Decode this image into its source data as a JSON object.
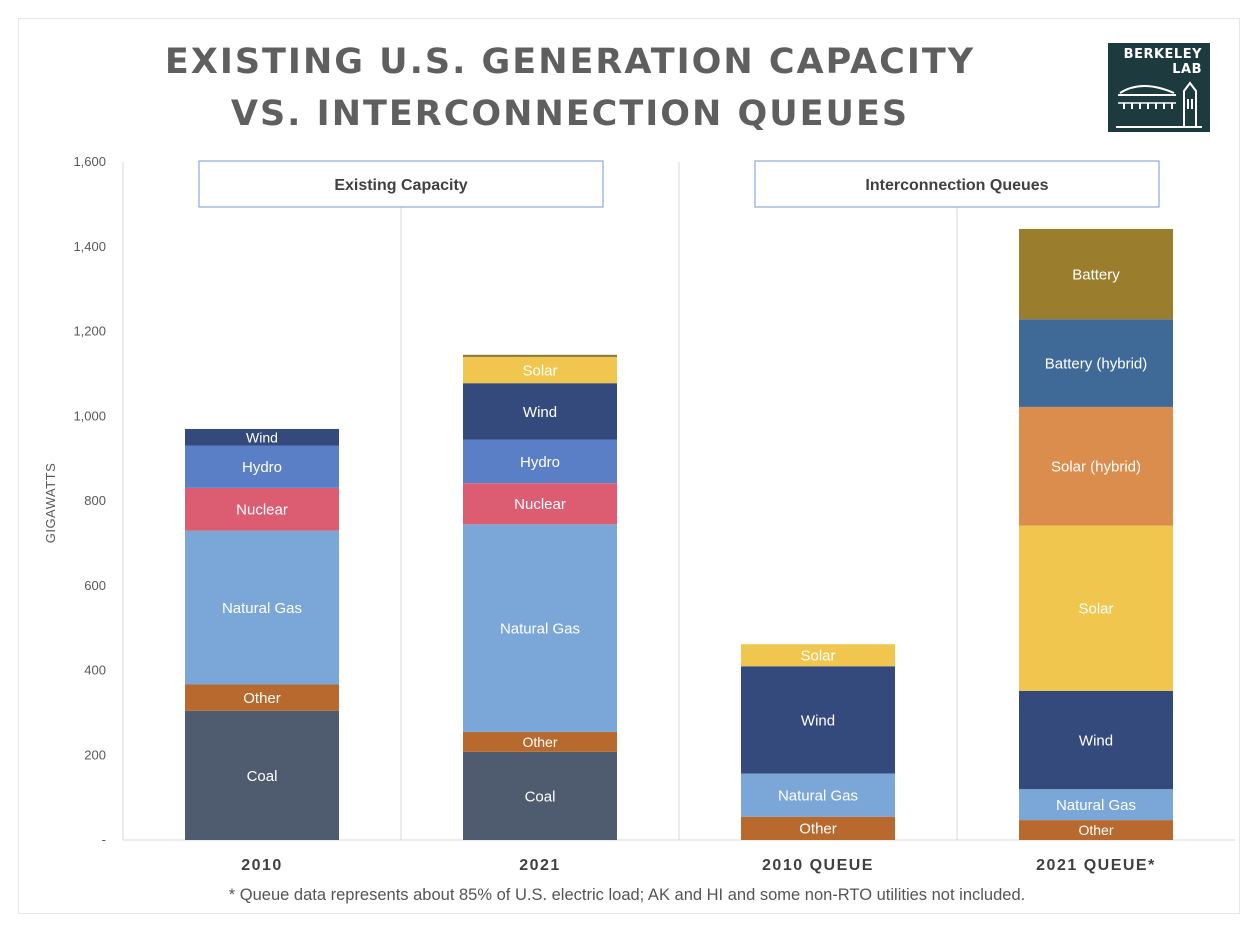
{
  "title_line1": "EXISTING U.S. GENERATION CAPACITY",
  "title_line2": "VS. INTERCONNECTION QUEUES",
  "logo": {
    "line1": "BERKELEY",
    "line2": "LAB",
    "icon": "berkeley-lab-building-icon"
  },
  "footnote": "* Queue data represents about 85% of U.S. electric load; AK and HI and some non-RTO utilities not included.",
  "chart_data": {
    "type": "bar",
    "stacked": true,
    "ylabel": "GIGAWATTS",
    "ylim": [
      0,
      1600
    ],
    "yticks": [
      0,
      200,
      400,
      600,
      800,
      1000,
      1200,
      1400,
      1600
    ],
    "ytick_labels": [
      "-",
      "200",
      "400",
      "600",
      "800",
      "1,000",
      "1,200",
      "1,400",
      "1,600"
    ],
    "categories": [
      "2010",
      "2021",
      "2010 QUEUE",
      "2021 QUEUE*"
    ],
    "groups": [
      {
        "label": "Existing Capacity",
        "categories": [
          "2010",
          "2021"
        ]
      },
      {
        "label": "Interconnection Queues",
        "categories": [
          "2010 QUEUE",
          "2021 QUEUE*"
        ]
      }
    ],
    "grid": false,
    "bars": [
      {
        "category": "2010",
        "segments": [
          {
            "name": "Coal",
            "value": 305,
            "color": "#4f5b6e"
          },
          {
            "name": "Other",
            "value": 62,
            "color": "#b86a2e"
          },
          {
            "name": "Natural Gas",
            "value": 363,
            "color": "#7aa6d8"
          },
          {
            "name": "Nuclear",
            "value": 101,
            "color": "#dc5c72"
          },
          {
            "name": "Hydro",
            "value": 100,
            "color": "#5b7fc6"
          },
          {
            "name": "Wind",
            "value": 39,
            "color": "#354a7c"
          }
        ]
      },
      {
        "category": "2021",
        "segments": [
          {
            "name": "Coal",
            "value": 208,
            "color": "#4f5b6e"
          },
          {
            "name": "Other",
            "value": 47,
            "color": "#b86a2e"
          },
          {
            "name": "Natural Gas",
            "value": 490,
            "color": "#7aa6d8"
          },
          {
            "name": "Nuclear",
            "value": 97,
            "color": "#dc5c72"
          },
          {
            "name": "Hydro",
            "value": 103,
            "color": "#5b7fc6"
          },
          {
            "name": "Wind",
            "value": 133,
            "color": "#354a7c"
          },
          {
            "name": "Solar",
            "value": 62,
            "color": "#f0c64e"
          },
          {
            "name": "",
            "value": 5,
            "color": "#8b7a3a"
          }
        ]
      },
      {
        "category": "2010 QUEUE",
        "segments": [
          {
            "name": "Other",
            "value": 55,
            "color": "#b86a2e"
          },
          {
            "name": "Natural Gas",
            "value": 102,
            "color": "#7aa6d8"
          },
          {
            "name": "Wind",
            "value": 253,
            "color": "#354a7c"
          },
          {
            "name": "Solar",
            "value": 52,
            "color": "#f0c64e"
          }
        ]
      },
      {
        "category": "2021 QUEUE*",
        "segments": [
          {
            "name": "Other",
            "value": 47,
            "color": "#b86a2e"
          },
          {
            "name": "Natural Gas",
            "value": 73,
            "color": "#7aa6d8"
          },
          {
            "name": "Wind",
            "value": 232,
            "color": "#354a7c"
          },
          {
            "name": "Solar",
            "value": 390,
            "color": "#f0c64e"
          },
          {
            "name": "Solar (hybrid)",
            "value": 280,
            "color": "#db8d4e"
          },
          {
            "name": "Battery (hybrid)",
            "value": 207,
            "color": "#3f6a98"
          },
          {
            "name": "Battery",
            "value": 213,
            "color": "#9a7e2e"
          }
        ]
      }
    ]
  }
}
